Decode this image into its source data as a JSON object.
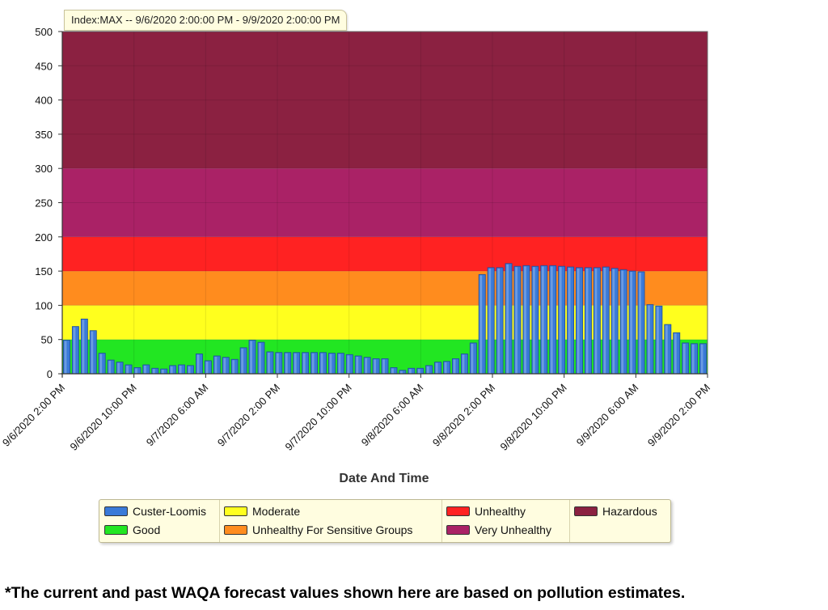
{
  "chart_data": {
    "type": "bar",
    "title": "Index:MAX -- 9/6/2020 2:00:00 PM  -  9/9/2020 2:00:00 PM",
    "xlabel": "Date And Time",
    "ylabel": "",
    "ylim": [
      0,
      500
    ],
    "yticks": [
      0,
      50,
      100,
      150,
      200,
      250,
      300,
      350,
      400,
      450,
      500
    ],
    "x_tick_labels": [
      "9/6/2020 2:00 PM",
      "9/6/2020 10:00 PM",
      "9/7/2020 6:00 AM",
      "9/7/2020 2:00 PM",
      "9/7/2020 10:00 PM",
      "9/8/2020 6:00 AM",
      "9/8/2020 2:00 PM",
      "9/8/2020 10:00 PM",
      "9/9/2020 6:00 AM",
      "9/9/2020 2:00 PM"
    ],
    "x_tick_hours": [
      0,
      8,
      16,
      24,
      32,
      40,
      48,
      56,
      64,
      72
    ],
    "hours_span": 72,
    "bands": [
      {
        "name": "Good",
        "from": 0,
        "to": 50,
        "color": "#22e622"
      },
      {
        "name": "Moderate",
        "from": 50,
        "to": 100,
        "color": "#ffff1e"
      },
      {
        "name": "Unhealthy For Sensitive Groups",
        "from": 100,
        "to": 150,
        "color": "#ff8c1e"
      },
      {
        "name": "Unhealthy",
        "from": 150,
        "to": 200,
        "color": "#ff2222"
      },
      {
        "name": "Very Unhealthy",
        "from": 200,
        "to": 300,
        "color": "#aa2266"
      },
      {
        "name": "Hazardous",
        "from": 300,
        "to": 500,
        "color": "#8b2141"
      }
    ],
    "series": [
      {
        "name": "Custer-Loomis",
        "color": "#3a7ad8",
        "values": [
          49,
          69,
          80,
          63,
          30,
          20,
          17,
          13,
          9,
          13,
          8,
          7,
          12,
          13,
          12,
          29,
          19,
          26,
          24,
          21,
          38,
          49,
          46,
          32,
          31,
          31,
          31,
          31,
          31,
          31,
          30,
          30,
          28,
          26,
          24,
          22,
          22,
          9,
          5,
          8,
          8,
          12,
          17,
          18,
          22,
          29,
          45,
          145,
          155,
          155,
          161,
          157,
          158,
          157,
          158,
          158,
          157,
          156,
          155,
          155,
          155,
          156,
          154,
          152,
          150,
          149,
          101,
          99,
          72,
          60,
          45,
          44,
          44
        ]
      }
    ]
  },
  "legend": {
    "items": [
      {
        "label": "Custer-Loomis",
        "color": "#3a7ad8"
      },
      {
        "label": "Good",
        "color": "#22e622"
      },
      {
        "label": "Moderate",
        "color": "#ffff1e"
      },
      {
        "label": "Unhealthy For Sensitive Groups",
        "color": "#ff8c1e"
      },
      {
        "label": "Unhealthy",
        "color": "#ff2222"
      },
      {
        "label": "Very Unhealthy",
        "color": "#aa2266"
      },
      {
        "label": "Hazardous",
        "color": "#8b2141"
      }
    ]
  },
  "footnote": "*The current and past WAQA forecast values shown here are based on pollution estimates."
}
